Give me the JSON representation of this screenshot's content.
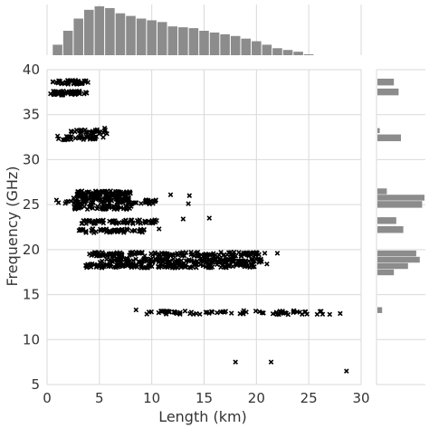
{
  "chart_data": {
    "type": "scatter",
    "title": "",
    "xlabel": "Length (km)",
    "ylabel": "Frequency (GHz)",
    "xlim": [
      0,
      30
    ],
    "ylim": [
      5,
      40
    ],
    "xticks": [
      "0",
      "5",
      "10",
      "15",
      "20",
      "25",
      "30"
    ],
    "yticks": [
      "5",
      "10",
      "15",
      "20",
      "25",
      "30",
      "35",
      "40"
    ],
    "grid": true,
    "marker": "x",
    "marker_color": "#000000",
    "hist_color": "#8c8c8c",
    "clusters": [
      {
        "f": 38.6,
        "x0": 0.5,
        "x1": 4.0,
        "n": 45
      },
      {
        "f": 37.4,
        "x0": 0.3,
        "x1": 3.8,
        "n": 45
      },
      {
        "f": 33.1,
        "x0": 2.2,
        "x1": 5.8,
        "n": 30
      },
      {
        "f": 32.4,
        "x0": 0.8,
        "x1": 5.5,
        "n": 34
      },
      {
        "f": 26.3,
        "x0": 2.8,
        "x1": 8.0,
        "n": 60
      },
      {
        "f": 25.8,
        "x0": 2.5,
        "x1": 8.0,
        "n": 60
      },
      {
        "f": 25.3,
        "x0": 1.0,
        "x1": 10.5,
        "n": 65
      },
      {
        "f": 24.7,
        "x0": 2.6,
        "x1": 8.2,
        "n": 55
      },
      {
        "f": 23.1,
        "x0": 3.2,
        "x1": 10.5,
        "n": 65
      },
      {
        "f": 22.1,
        "x0": 3.0,
        "x1": 9.5,
        "n": 55
      },
      {
        "f": 19.5,
        "x0": 4.0,
        "x1": 20.5,
        "n": 150
      },
      {
        "f": 18.8,
        "x0": 5.0,
        "x1": 20.5,
        "n": 150
      },
      {
        "f": 18.2,
        "x0": 3.5,
        "x1": 20.0,
        "n": 150
      },
      {
        "f": 13.0,
        "x0": 9.5,
        "x1": 26.5,
        "n": 70
      }
    ],
    "outliers": [
      {
        "x": 5.5,
        "y": 33.5
      },
      {
        "x": 0.9,
        "y": 25.5
      },
      {
        "x": 11.8,
        "y": 26.1
      },
      {
        "x": 13.6,
        "y": 26.0
      },
      {
        "x": 13.5,
        "y": 25.1
      },
      {
        "x": 13.0,
        "y": 23.4
      },
      {
        "x": 15.5,
        "y": 23.5
      },
      {
        "x": 10.7,
        "y": 22.3
      },
      {
        "x": 20.8,
        "y": 19.6
      },
      {
        "x": 22.0,
        "y": 19.6
      },
      {
        "x": 21.0,
        "y": 18.4
      },
      {
        "x": 8.5,
        "y": 13.3
      },
      {
        "x": 27.0,
        "y": 12.8
      },
      {
        "x": 28.0,
        "y": 12.9
      },
      {
        "x": 18.0,
        "y": 7.5
      },
      {
        "x": 21.4,
        "y": 7.5
      },
      {
        "x": 28.6,
        "y": 6.5
      }
    ],
    "marginal_x": {
      "bin_width": 1.0,
      "bins_start": 0.5,
      "counts": [
        12,
        28,
        42,
        52,
        56,
        54,
        48,
        45,
        42,
        40,
        38,
        33,
        32,
        31,
        28,
        26,
        24,
        22,
        19,
        16,
        12,
        8,
        6,
        4,
        1
      ]
    },
    "marginal_y": {
      "bins": [
        {
          "y0": 38.2,
          "y1": 39.0,
          "count": 14
        },
        {
          "y0": 37.1,
          "y1": 37.9,
          "count": 18
        },
        {
          "y0": 32.9,
          "y1": 33.5,
          "count": 2
        },
        {
          "y0": 32.0,
          "y1": 32.8,
          "count": 20
        },
        {
          "y0": 26.1,
          "y1": 26.8,
          "count": 8
        },
        {
          "y0": 25.4,
          "y1": 26.1,
          "count": 40
        },
        {
          "y0": 24.6,
          "y1": 25.4,
          "count": 38
        },
        {
          "y0": 22.8,
          "y1": 23.6,
          "count": 16
        },
        {
          "y0": 21.8,
          "y1": 22.6,
          "count": 22
        },
        {
          "y0": 19.2,
          "y1": 19.9,
          "count": 33
        },
        {
          "y0": 18.5,
          "y1": 19.2,
          "count": 36
        },
        {
          "y0": 17.8,
          "y1": 18.5,
          "count": 26
        },
        {
          "y0": 17.1,
          "y1": 17.8,
          "count": 14
        },
        {
          "y0": 12.9,
          "y1": 13.6,
          "count": 4
        }
      ]
    }
  }
}
